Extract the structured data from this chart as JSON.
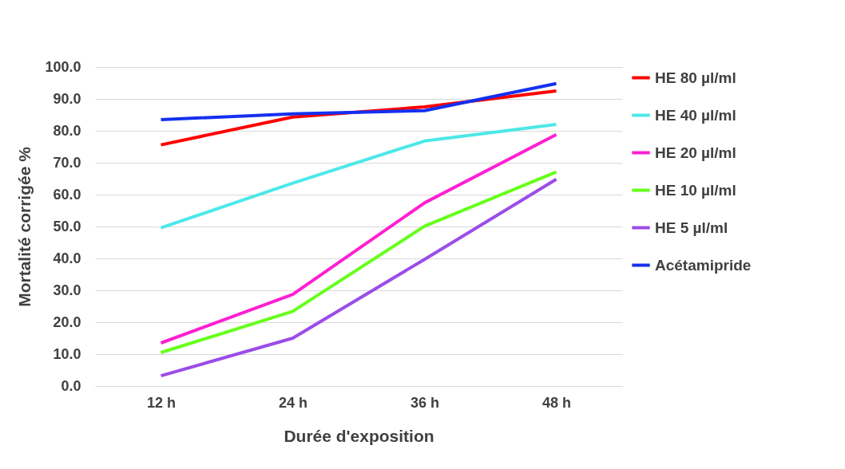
{
  "chart_data": {
    "type": "line",
    "xlabel": "Durée d'exposition",
    "ylabel": "Mortalité corrigée %",
    "categories": [
      "12 h",
      "24 h",
      "36 h",
      "48 h"
    ],
    "series": [
      {
        "name": "HE 80 µl/ml",
        "color": "#ff0000",
        "values": [
          75.6,
          84.3,
          87.5,
          92.5
        ]
      },
      {
        "name": "HE 40 µl/ml",
        "color": "#4de8e8",
        "values": [
          49.6,
          63.6,
          76.8,
          82.0
        ]
      },
      {
        "name": "HE 20 µl/ml",
        "color": "#ff1fd2",
        "values": [
          13.5,
          28.7,
          57.4,
          78.8
        ]
      },
      {
        "name": "HE 10 µl/ml",
        "color": "#66ff1a",
        "values": [
          10.5,
          23.4,
          50.1,
          67.1
        ]
      },
      {
        "name": "HE 5 µl/ml",
        "color": "#9b4de8",
        "values": [
          3.2,
          15.0,
          39.7,
          64.8
        ]
      },
      {
        "name": "Acétamipride",
        "color": "#1430f0",
        "values": [
          83.5,
          85.3,
          86.3,
          94.8
        ]
      }
    ],
    "ylim": [
      0,
      100
    ],
    "yticks": [
      {
        "value": 0,
        "label": "0.0"
      },
      {
        "value": 10,
        "label": "10.0"
      },
      {
        "value": 20,
        "label": "20.0"
      },
      {
        "value": 30,
        "label": "30.0"
      },
      {
        "value": 40,
        "label": "40.0"
      },
      {
        "value": 50,
        "label": "50.0"
      },
      {
        "value": 60,
        "label": "60.0"
      },
      {
        "value": 70,
        "label": "70.0"
      },
      {
        "value": 80,
        "label": "80.0"
      },
      {
        "value": 90,
        "label": "90.0"
      },
      {
        "value": 100,
        "label": "100.0"
      }
    ],
    "grid": "y",
    "legend": "right",
    "marker": "none",
    "line_style": "solid"
  }
}
